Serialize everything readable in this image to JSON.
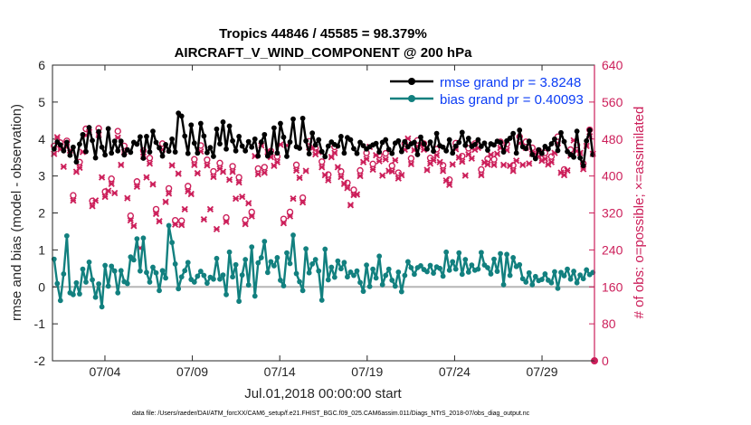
{
  "chart_data": {
    "type": "line",
    "title": "Tropics 44846 / 45585 = 98.379%",
    "subtitle": "AIRCRAFT_V_WIND_COMPONENT @ 200 hPa",
    "xlabel": "Jul.01,2018 00:00:00 start",
    "ylabel": "rmse and bias (model - observation)",
    "ylabel_right": "# of obs: o=possible; ×=assimilated",
    "x_tick_labels": [
      "07/04",
      "07/09",
      "07/14",
      "07/19",
      "07/24",
      "07/29"
    ],
    "x_tick_days": [
      4,
      9,
      14,
      19,
      24,
      29
    ],
    "xlim": [
      1,
      32
    ],
    "ylim": [
      -2,
      6
    ],
    "y_ticks": [
      -2,
      -1,
      0,
      1,
      2,
      3,
      4,
      5,
      6
    ],
    "y2lim": [
      0,
      640
    ],
    "y2_ticks": [
      0,
      80,
      160,
      240,
      320,
      400,
      480,
      560,
      640
    ],
    "legend": {
      "location": "top-right",
      "entries": [
        "rmse grand pr = 3.8248",
        "bias grand pr = 0.40093"
      ]
    },
    "footer": "data file: /Users/raeder/DAI/ATM_forcXX/CAM6_setup/f.e21.FHIST_BGC.f09_025.CAM6assim.011/Diags_NTrS_2018-07/obs_diag_output.nc",
    "series": [
      {
        "name": "rmse",
        "color": "#000000",
        "marker": "dot",
        "values": [
          3.73,
          3.92,
          3.84,
          3.68,
          3.91,
          3.56,
          3.78,
          3.38,
          3.86,
          4.12,
          3.66,
          4.31,
          3.96,
          3.49,
          4.2,
          3.78,
          3.57,
          4.28,
          3.62,
          3.94,
          3.68,
          3.94,
          3.57,
          3.71,
          3.64,
          3.91,
          3.86,
          4.06,
          3.48,
          4.07,
          3.65,
          4.21,
          3.91,
          3.76,
          3.54,
          3.85,
          3.67,
          4.0,
          3.65,
          4.7,
          4.62,
          4.08,
          3.61,
          4.38,
          3.89,
          3.62,
          4.42,
          4.08,
          3.63,
          3.77,
          3.53,
          4.27,
          3.87,
          4.46,
          3.73,
          4.35,
          3.95,
          3.68,
          4.07,
          3.81,
          3.68,
          3.93,
          3.78,
          4.0,
          3.54,
          3.92,
          4.12,
          3.54,
          3.63,
          4.3,
          3.62,
          4.42,
          4.05,
          3.53,
          3.92,
          4.54,
          3.79,
          3.75,
          4.56,
          3.95,
          3.6,
          4.16,
          3.84,
          3.98,
          3.66,
          3.52,
          3.81,
          3.92,
          3.85,
          3.81,
          4.07,
          3.62,
          4.04,
          3.98,
          3.74,
          3.61,
          3.91,
          3.82,
          3.73,
          3.79,
          3.84,
          3.88,
          3.65,
          3.91,
          3.98,
          3.72,
          3.61,
          3.89,
          3.95,
          3.66,
          3.93,
          3.79,
          3.87,
          3.91,
          3.58,
          4.05,
          3.87,
          3.73,
          3.92,
          3.67,
          4.15,
          3.82,
          3.78,
          3.68,
          3.98,
          3.62,
          3.81,
          3.91,
          4.18,
          3.83,
          4.02,
          3.8,
          3.85,
          3.98,
          3.8,
          3.89,
          3.7,
          3.87,
          3.84,
          3.94,
          3.91,
          3.65,
          3.95,
          4.02,
          4.15,
          3.62,
          4.24,
          3.79,
          3.74,
          3.94,
          3.58,
          3.47,
          3.71,
          3.61,
          3.8,
          3.73,
          3.87,
          4.0,
          3.69,
          4.17,
          3.93,
          3.66,
          3.58,
          3.51,
          4.21,
          3.49,
          3.28,
          3.95,
          4.24,
          3.58
        ]
      },
      {
        "name": "bias",
        "color": "#12807f",
        "marker": "dot",
        "values": [
          0.75,
          0.09,
          -0.37,
          0.35,
          1.38,
          -0.16,
          -0.21,
          0.11,
          -0.19,
          0.48,
          0.13,
          0.67,
          0.19,
          -0.28,
          0.08,
          -0.54,
          0.58,
          0.02,
          0.56,
          0.43,
          -0.16,
          0.44,
          0.14,
          0.09,
          0.81,
          0.73,
          1.3,
          0.43,
          1.32,
          0.39,
          0.13,
          0.53,
          0.38,
          -0.1,
          0.44,
          0.24,
          1.66,
          1.2,
          0.62,
          -0.05,
          0.27,
          0.44,
          0.66,
          0.2,
          0.13,
          0.29,
          0.42,
          0.31,
          0.1,
          0.26,
          0.21,
          0.77,
          0.21,
          0.32,
          -0.21,
          0.94,
          0.27,
          0.6,
          -0.39,
          0.32,
          0.74,
          0.05,
          1.08,
          -0.25,
          0.65,
          0.79,
          1.23,
          0.39,
          0.68,
          0.57,
          0.79,
          0.18,
          0.03,
          0.92,
          0.63,
          1.4,
          0.36,
          0.14,
          -0.1,
          1.03,
          0.38,
          0.62,
          0.74,
          0.43,
          -0.36,
          1.02,
          0.19,
          0.53,
          0.26,
          0.7,
          0.49,
          0.66,
          0.27,
          0.4,
          0.31,
          0.43,
          0.12,
          -0.12,
          0.59,
          0.01,
          0.48,
          0.24,
          0.83,
          0.06,
          0.31,
          0.48,
          0.18,
          0.02,
          0.4,
          -0.13,
          0.31,
          0.68,
          0.52,
          0.34,
          0.52,
          0.57,
          0.47,
          0.41,
          0.58,
          0.37,
          0.54,
          0.5,
          0.29,
          0.94,
          0.45,
          0.68,
          0.48,
          0.92,
          0.34,
          0.74,
          0.4,
          0.59,
          0.45,
          0.48,
          0.93,
          0.59,
          0.52,
          0.35,
          0.75,
          0.42,
          0.9,
          0.06,
          0.88,
          0.31,
          0.79,
          0.55,
          0.6,
          0.22,
          0.13,
          0.38,
          0.06,
          0.28,
          0.17,
          0.2,
          0.35,
          0.18,
          0.11,
          0.41,
          -0.04,
          0.39,
          0.3,
          0.48,
          0.21,
          0.42,
          0.11,
          0.32,
          0.22,
          0.46,
          0.33,
          0.39
        ]
      }
    ],
    "obs_possible": [
      465,
      498,
      472,
      432,
      476,
      469,
      358,
      421,
      430,
      465,
      502,
      509,
      346,
      357,
      503,
      409,
      366,
      379,
      394,
      374,
      497,
      436,
      465,
      362,
      314,
      302,
      388,
      252,
      455,
      409,
      439,
      393,
      328,
      312,
      470,
      354,
      373,
      435,
      304,
      417,
      303,
      339,
      378,
      372,
      436,
      418,
      466,
      316,
      435,
      338,
      410,
      294,
      428,
      421,
      310,
      404,
      421,
      362,
      397,
      366,
      305,
      351,
      322,
      456,
      416,
      479,
      419,
      465,
      454,
      434,
      442,
      481,
      307,
      479,
      322,
      362,
      424,
      408,
      353,
      423,
      475,
      475,
      460,
      465,
      431,
      414,
      403,
      454,
      463,
      431,
      410,
      394,
      385,
      347,
      370,
      371,
      412,
      442,
      450,
      476,
      426,
      458,
      445,
      413,
      449,
      423,
      422,
      447,
      407,
      414,
      470,
      495,
      438,
      469,
      477,
      480,
      470,
      425,
      439,
      446,
      458,
      442,
      423,
      402,
      392,
      437,
      471,
      453,
      443,
      413,
      460,
      451,
      470,
      474,
      414,
      441,
      437,
      459,
      436,
      461,
      474,
      436,
      469,
      434,
      423,
      445,
      485,
      436,
      474,
      439,
      461,
      461,
      455,
      445,
      450,
      437,
      442,
      463,
      485,
      419,
      414,
      424,
      457,
      491,
      467,
      463,
      427,
      478,
      500,
      461
    ],
    "obs_assimilated": [
      448,
      484,
      458,
      420,
      463,
      455,
      347,
      409,
      418,
      452,
      488,
      495,
      335,
      347,
      489,
      397,
      355,
      368,
      383,
      363,
      483,
      424,
      452,
      352,
      304,
      292,
      377,
      244,
      442,
      397,
      427,
      382,
      318,
      302,
      457,
      344,
      362,
      423,
      295,
      405,
      294,
      328,
      367,
      361,
      424,
      406,
      453,
      306,
      423,
      328,
      398,
      285,
      416,
      409,
      301,
      392,
      409,
      351,
      386,
      355,
      296,
      341,
      313,
      443,
      404,
      466,
      407,
      452,
      441,
      422,
      430,
      468,
      298,
      466,
      313,
      351,
      412,
      396,
      343,
      411,
      462,
      462,
      447,
      452,
      419,
      402,
      391,
      441,
      450,
      419,
      398,
      383,
      374,
      337,
      359,
      360,
      400,
      430,
      437,
      463,
      414,
      445,
      432,
      401,
      436,
      411,
      410,
      434,
      395,
      402,
      457,
      481,
      426,
      456,
      464,
      467,
      457,
      413,
      427,
      434,
      445,
      430,
      411,
      390,
      381,
      425,
      458,
      440,
      431,
      401,
      447,
      438,
      457,
      461,
      402,
      429,
      425,
      446,
      424,
      448,
      461,
      424,
      456,
      422,
      411,
      433,
      471,
      424,
      461,
      427,
      448,
      448,
      442,
      433,
      437,
      425,
      430,
      450,
      471,
      407,
      402,
      412,
      444,
      477,
      454,
      450,
      415,
      465,
      486,
      448
    ]
  }
}
